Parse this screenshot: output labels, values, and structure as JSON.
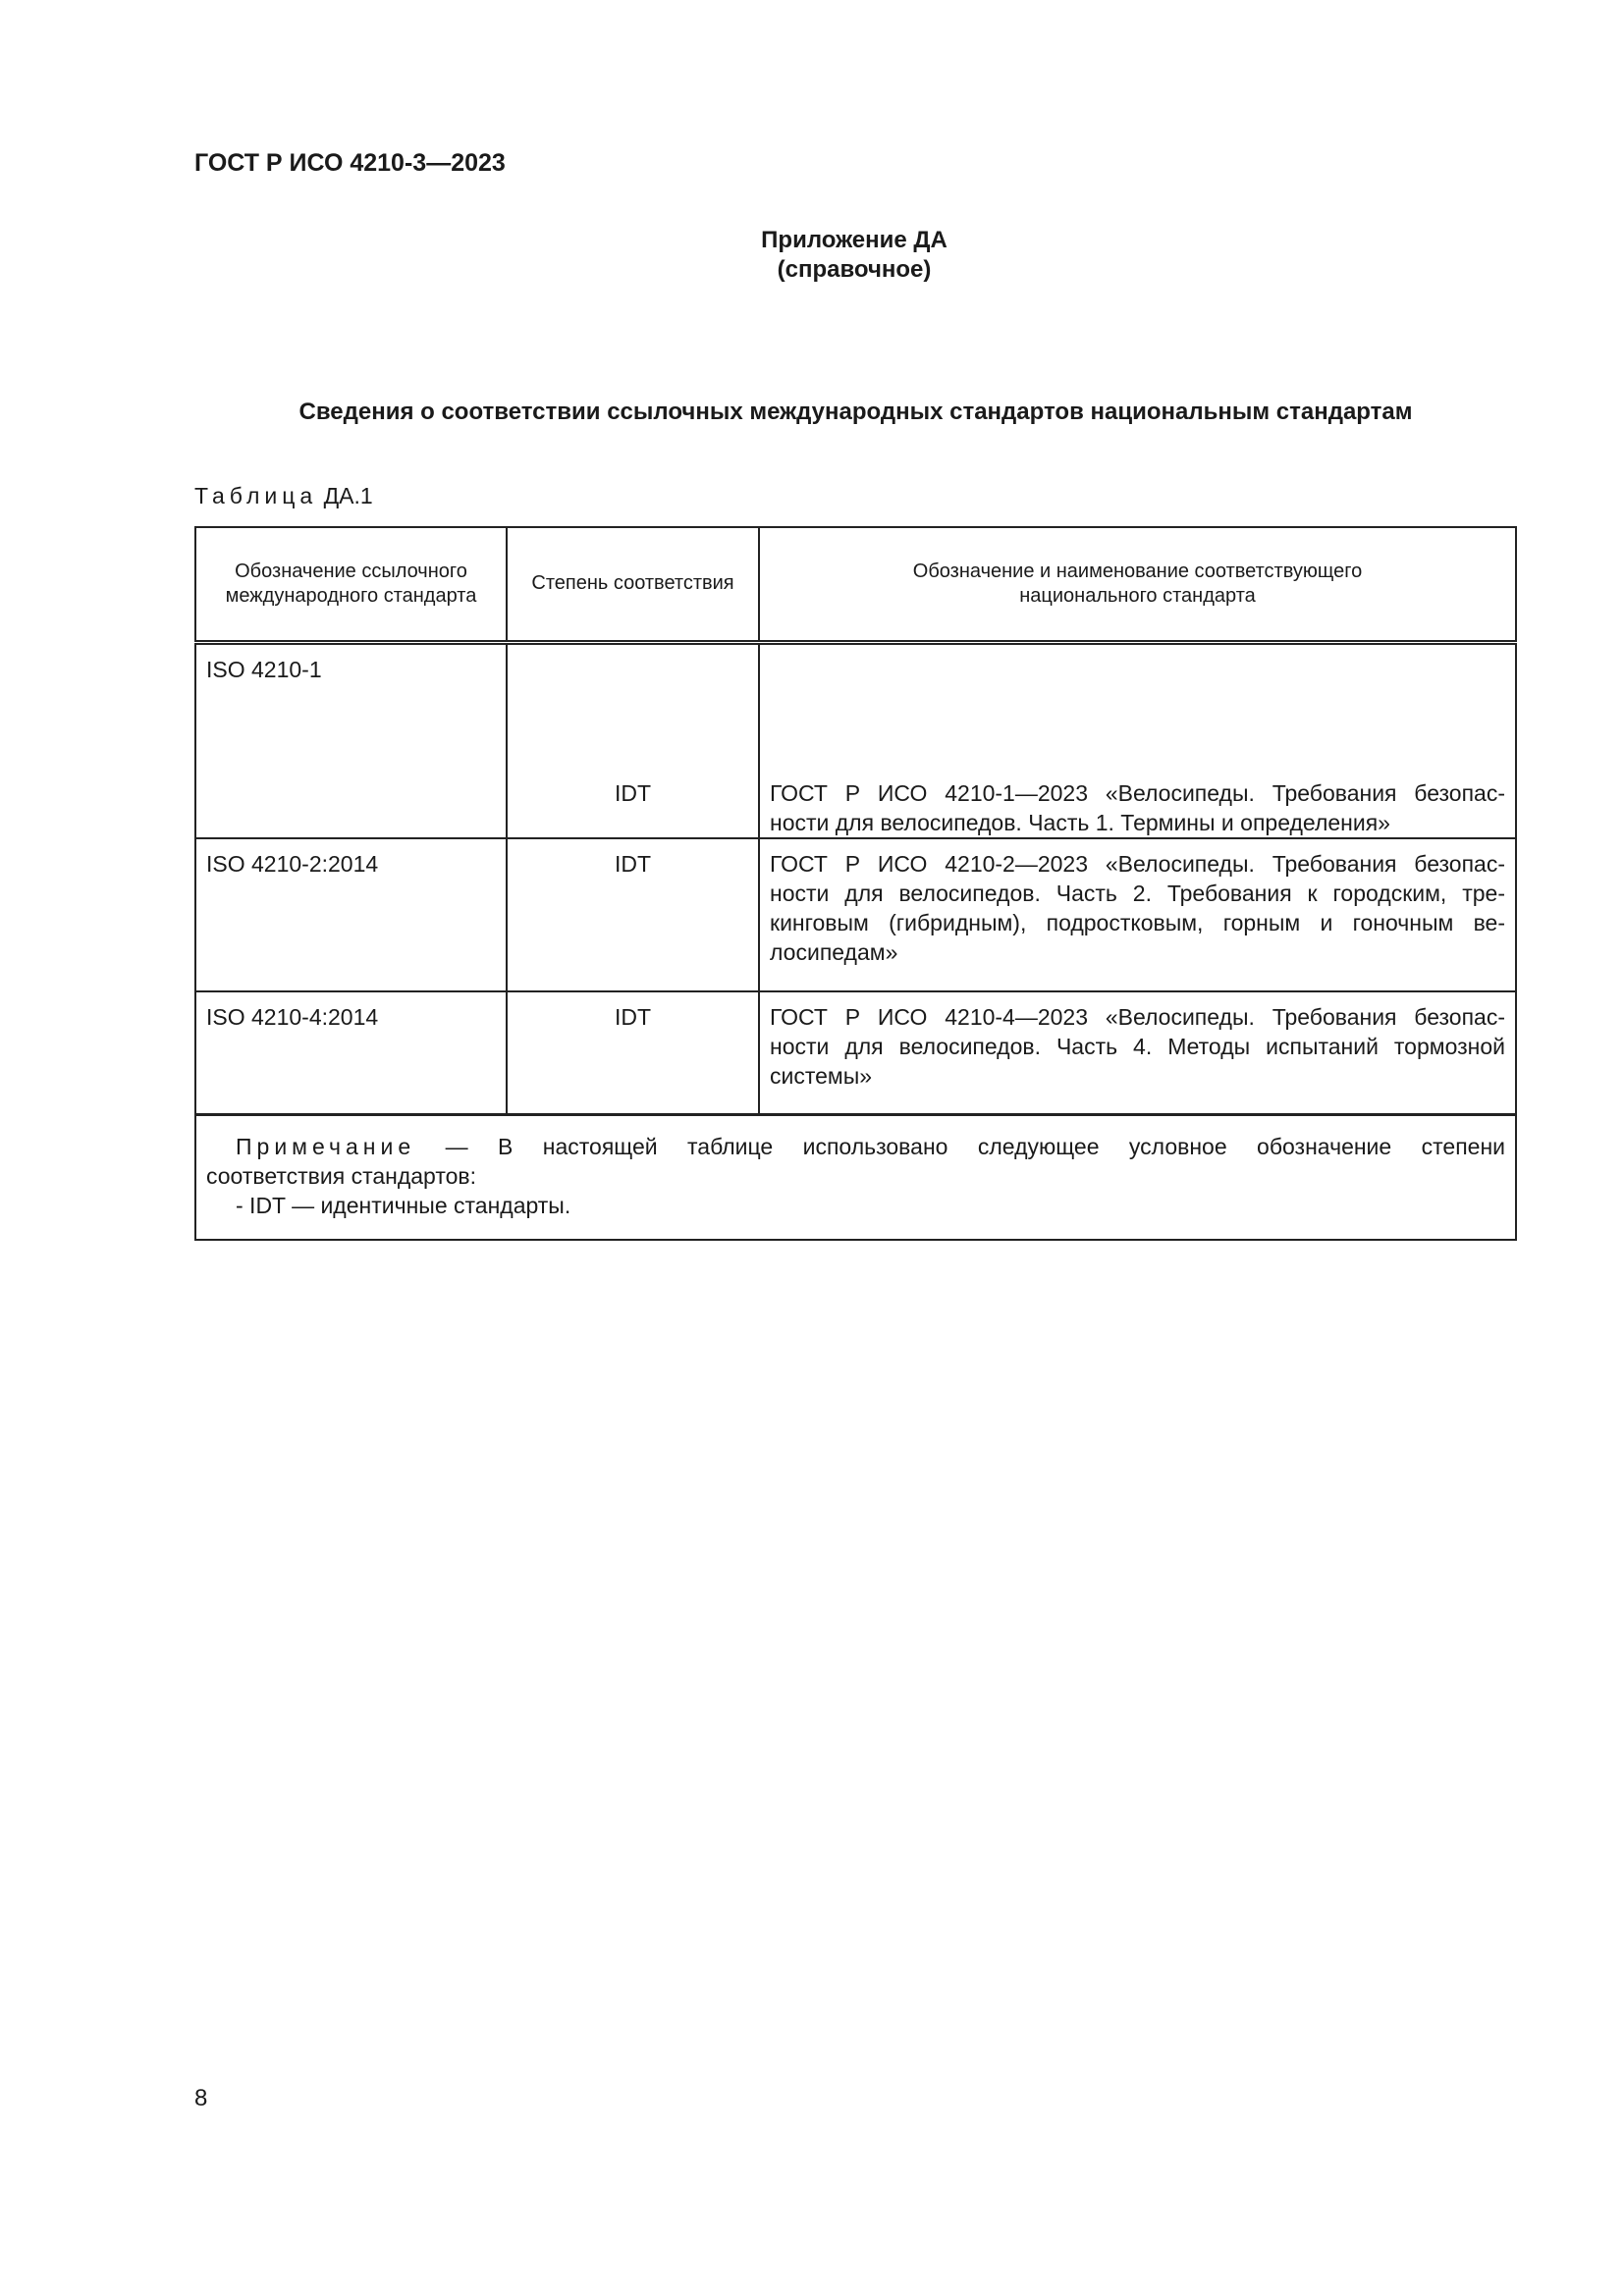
{
  "header": "ГОСТ Р ИСО 4210-3—2023",
  "appendix": {
    "title": "Приложение ДА",
    "subtitle": "(справочное)"
  },
  "section_title": "Сведения о соответствии ссылочных международных стандартов национальным стандартам",
  "table_caption": {
    "label": "Таблица",
    "number": "ДА.1"
  },
  "table": {
    "headers": [
      [
        "Обозначение ссылочного",
        "международного стандарта"
      ],
      [
        "Степень соответствия"
      ],
      [
        "Обозначение и наименование соответствующего",
        "национального  стандарта"
      ]
    ],
    "rows": [
      {
        "intl": "ISO 4210-1",
        "degree": "IDT",
        "national": [
          "ГОСТ Р ИСО 4210-1—2023 «Велосипеды. Требования безопас-",
          "ности для велосипедов. Часть 1. Термины и определения»"
        ]
      },
      {
        "intl": "ISO 4210-2:2014",
        "degree": "IDT",
        "national": [
          "ГОСТ Р ИСО 4210-2—2023 «Велосипеды. Требования безопас-",
          "ности для велосипедов. Часть 2. Требования к городским, тре-",
          "кинговым (гибридным), подростковым, горным и гоночным ве-",
          "лосипедам»"
        ]
      },
      {
        "intl": "ISO 4210-4:2014",
        "degree": "IDT",
        "national": [
          "ГОСТ Р ИСО 4210-4—2023 «Велосипеды. Требования безопас-",
          "ности для велосипедов. Часть 4. Методы испытаний тормозной",
          "системы»"
        ]
      }
    ],
    "note": {
      "label": "Примечание",
      "line1": " — В настоящей таблице использовано следующее условное обозначение степени",
      "line2": "соответствия стандартов:",
      "line3": "- IDT — идентичные стандарты."
    }
  },
  "page_number": "8"
}
